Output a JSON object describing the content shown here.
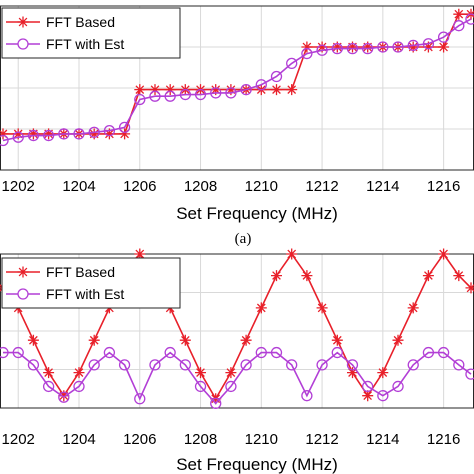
{
  "chart_data": [
    {
      "type": "line",
      "panel_label": "(a)",
      "xlabel": "Set Frequency (MHz)",
      "ylabel": "",
      "xlim": [
        1201.4,
        1217.0
      ],
      "ylim": [
        0,
        100
      ],
      "x_ticks": [
        1202,
        1204,
        1206,
        1208,
        1210,
        1212,
        1214,
        1216
      ],
      "grid": true,
      "legend": "top-left",
      "series": [
        {
          "name": "FFT Based",
          "color": "#e8202a",
          "marker": "star",
          "x": [
            1201.5,
            1202,
            1202.5,
            1203,
            1203.5,
            1204,
            1204.5,
            1205,
            1205.5,
            1206,
            1206.5,
            1207,
            1207.5,
            1208,
            1208.5,
            1209,
            1209.5,
            1210,
            1210.5,
            1211,
            1211.5,
            1212,
            1212.5,
            1213,
            1213.5,
            1214,
            1214.5,
            1215,
            1215.5,
            1216,
            1216.5,
            1216.9
          ],
          "y": [
            22,
            22,
            22,
            22,
            22,
            22,
            22,
            22,
            22,
            49,
            49,
            49,
            49,
            49,
            49,
            49,
            49,
            49,
            49,
            49,
            75,
            75,
            75,
            75,
            75,
            75,
            75,
            75,
            75,
            75,
            95,
            95
          ]
        },
        {
          "name": "FFT with Est",
          "color": "#b23fd6",
          "marker": "circle",
          "x": [
            1201.5,
            1202,
            1202.5,
            1203,
            1203.5,
            1204,
            1204.5,
            1205,
            1205.5,
            1206,
            1206.5,
            1207,
            1207.5,
            1208,
            1208.5,
            1209,
            1209.5,
            1210,
            1210.5,
            1211,
            1211.5,
            1212,
            1212.5,
            1213,
            1213.5,
            1214,
            1214.5,
            1215,
            1215.5,
            1216,
            1216.5,
            1216.9
          ],
          "y": [
            18,
            20,
            21,
            21,
            22,
            22,
            23,
            24,
            26,
            43,
            45,
            45,
            46,
            46,
            47,
            47,
            49,
            52,
            57,
            65,
            71,
            73,
            74,
            74,
            74,
            75,
            75,
            76,
            77,
            81,
            88,
            92
          ]
        }
      ]
    },
    {
      "type": "line",
      "panel_label": "",
      "xlabel": "Set Frequency (MHz)",
      "ylabel": "",
      "xlim": [
        1201.4,
        1217.0
      ],
      "ylim": [
        0,
        100
      ],
      "x_ticks": [
        1202,
        1204,
        1206,
        1208,
        1210,
        1212,
        1214,
        1216
      ],
      "grid": true,
      "legend": "top-left",
      "series": [
        {
          "name": "FFT Based",
          "color": "#e8202a",
          "marker": "star",
          "x": [
            1201.5,
            1202,
            1202.5,
            1203,
            1203.5,
            1204,
            1204.5,
            1205,
            1205.5,
            1206,
            1206.5,
            1207,
            1207.5,
            1208,
            1208.5,
            1209,
            1209.5,
            1210,
            1210.5,
            1211,
            1211.5,
            1212,
            1212.5,
            1213,
            1213.5,
            1214,
            1214.5,
            1215,
            1215.5,
            1216,
            1216.5,
            1216.9
          ],
          "y": [
            78,
            65,
            44,
            23,
            8,
            23,
            44,
            65,
            86,
            100,
            86,
            65,
            44,
            23,
            6,
            23,
            44,
            65,
            86,
            100,
            86,
            65,
            44,
            23,
            8,
            23,
            44,
            65,
            86,
            100,
            86,
            78
          ]
        },
        {
          "name": "FFT with Est",
          "color": "#b23fd6",
          "marker": "circle",
          "x": [
            1201.5,
            1202,
            1202.5,
            1203,
            1203.5,
            1204,
            1204.5,
            1205,
            1205.5,
            1206,
            1206.5,
            1207,
            1207.5,
            1208,
            1208.5,
            1209,
            1209.5,
            1210,
            1210.5,
            1211,
            1211.5,
            1212,
            1212.5,
            1213,
            1213.5,
            1214,
            1214.5,
            1215,
            1215.5,
            1216,
            1216.5,
            1216.9
          ],
          "y": [
            36,
            36,
            28,
            14,
            7,
            14,
            28,
            36,
            28,
            6,
            28,
            36,
            28,
            14,
            3,
            14,
            28,
            36,
            36,
            28,
            8,
            28,
            36,
            28,
            14,
            8,
            14,
            28,
            36,
            36,
            28,
            22
          ]
        }
      ]
    }
  ]
}
